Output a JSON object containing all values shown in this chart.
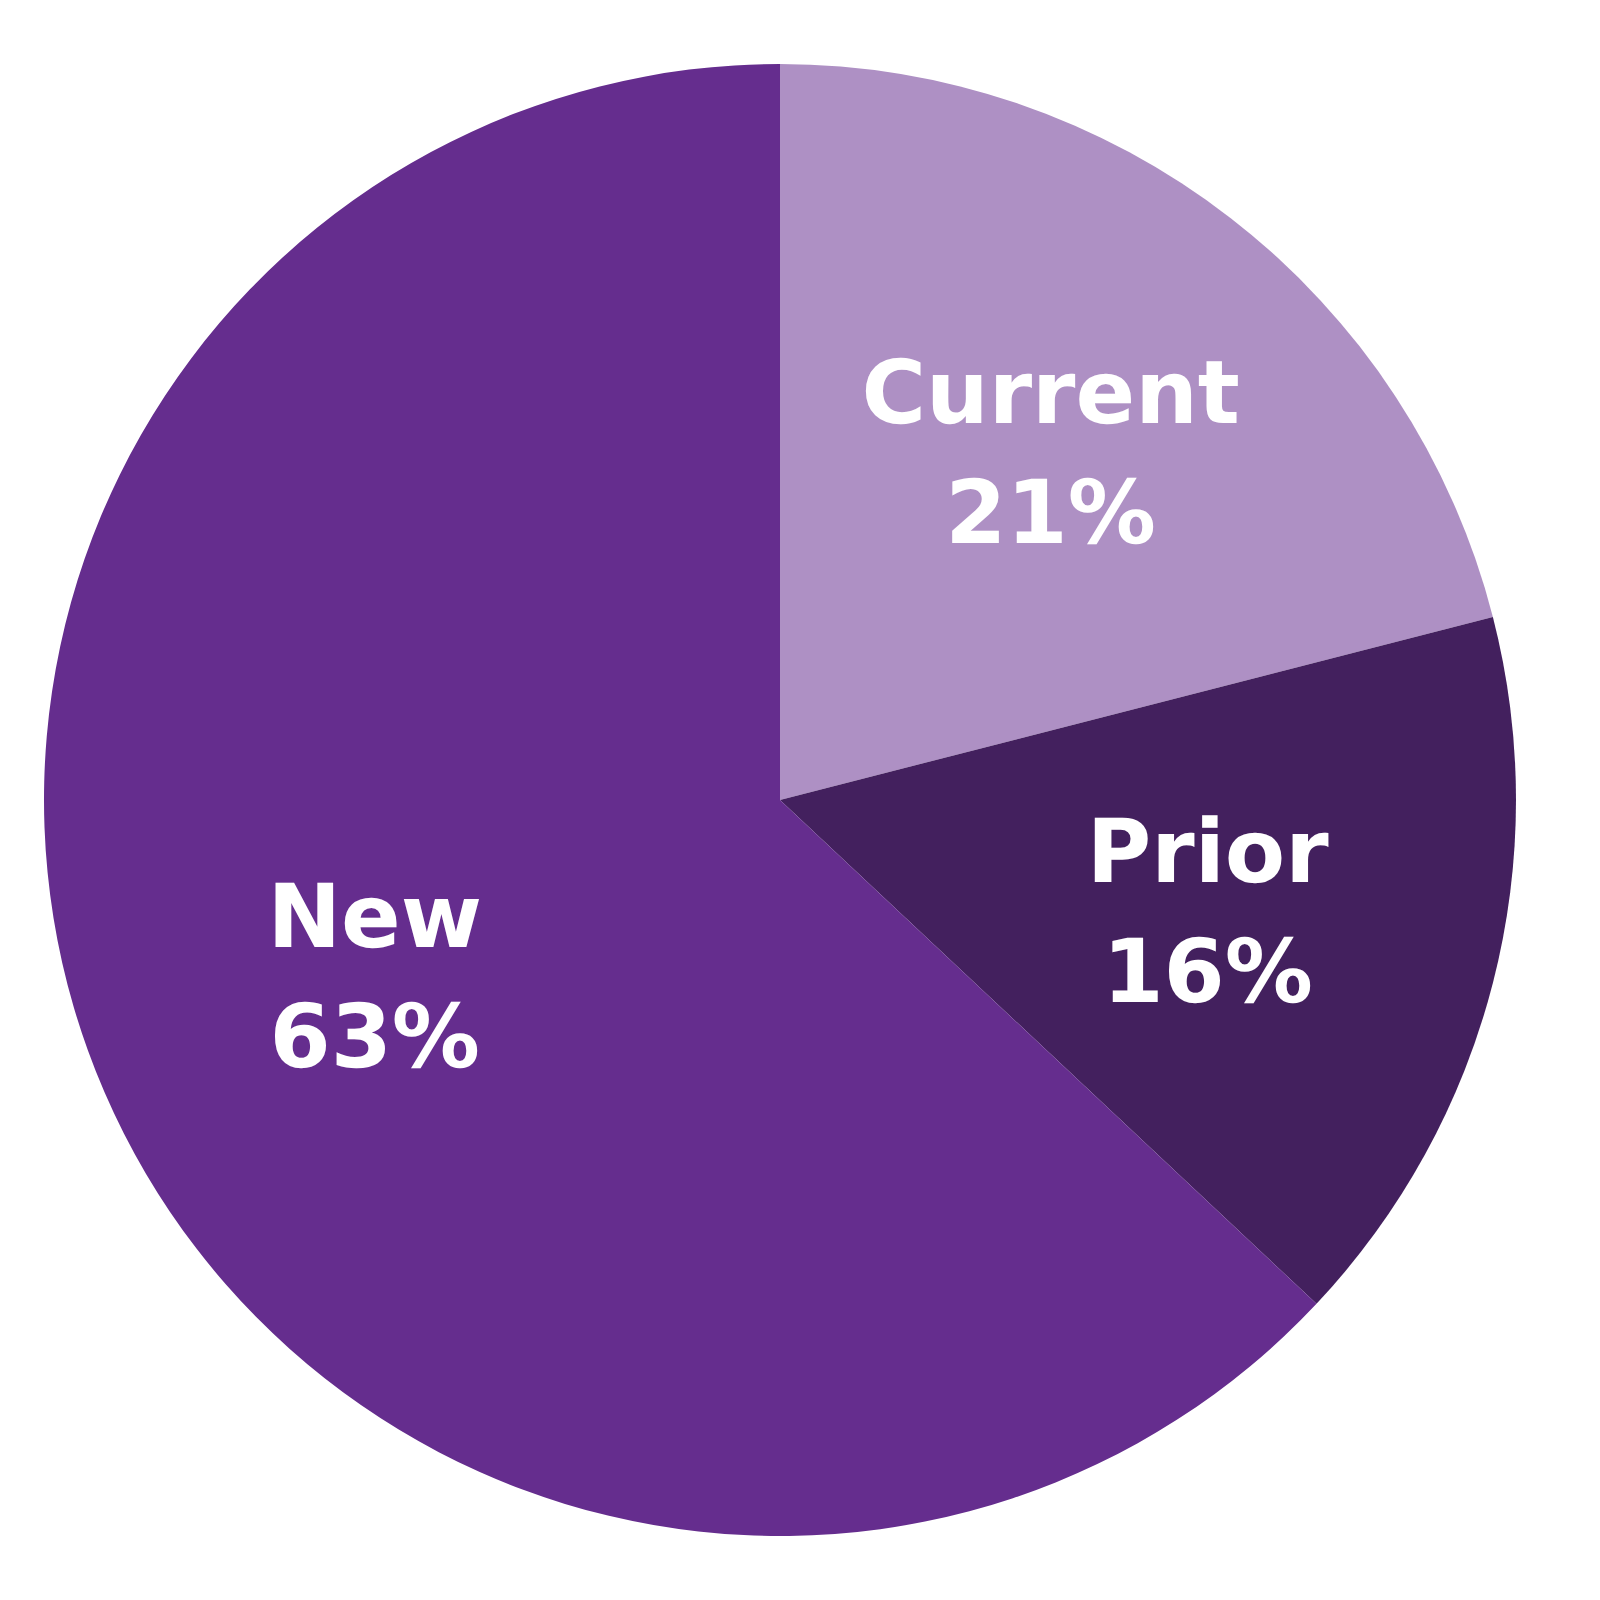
{
  "chart_data": {
    "type": "pie",
    "categories": [
      "Current",
      "Prior",
      "New"
    ],
    "values": [
      21,
      16,
      63
    ],
    "colors": [
      "#ae90c4",
      "#43205e",
      "#652d8e"
    ],
    "value_labels": [
      "21%",
      "16%",
      "63%"
    ]
  }
}
